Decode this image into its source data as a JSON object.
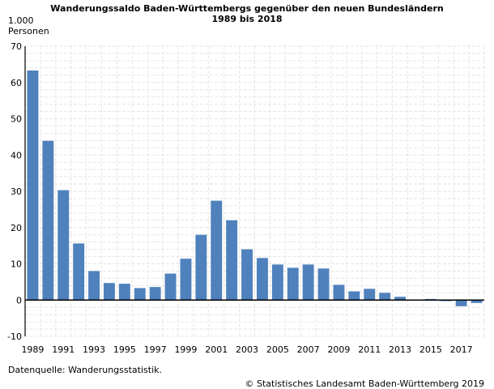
{
  "chart_data": {
    "type": "bar",
    "title": "Wanderungssaldo Baden-Württembergs gegenüber den neuen Bundesländern",
    "subtitle": "1989 bis 2018",
    "ylabel_line1": "1.000",
    "ylabel_line2": "Personen",
    "xlabel": "",
    "ylim": [
      -10,
      70
    ],
    "yticks": [
      -10,
      0,
      10,
      20,
      30,
      40,
      50,
      60,
      70
    ],
    "categories": [
      "1989",
      "1990",
      "1991",
      "1992",
      "1993",
      "1994",
      "1995",
      "1996",
      "1997",
      "1998",
      "1999",
      "2000",
      "2001",
      "2002",
      "2003",
      "2004",
      "2005",
      "2006",
      "2007",
      "2008",
      "2009",
      "2010",
      "2011",
      "2012",
      "2013",
      "2014",
      "2015",
      "2016",
      "2017",
      "2018"
    ],
    "xtick_labels": [
      "1989",
      "1991",
      "1993",
      "1995",
      "1997",
      "1999",
      "2001",
      "2003",
      "2005",
      "2007",
      "2009",
      "2011",
      "2013",
      "2015",
      "2017"
    ],
    "values": [
      63.3,
      43.9,
      30.3,
      15.6,
      8.0,
      4.7,
      4.5,
      3.3,
      3.6,
      7.3,
      11.4,
      18.0,
      27.4,
      22.0,
      14.0,
      11.6,
      9.8,
      8.9,
      9.8,
      8.7,
      4.2,
      2.4,
      3.1,
      2.0,
      0.9,
      0.0,
      0.3,
      -0.3,
      -1.7,
      -0.8
    ],
    "bar_color": "#4f81bd",
    "grid": true,
    "legend": "none"
  },
  "footer": {
    "source": "Datenquelle: Wanderungsstatistik.",
    "copyright": "© Statistisches Landesamt Baden-Württemberg 2019"
  }
}
